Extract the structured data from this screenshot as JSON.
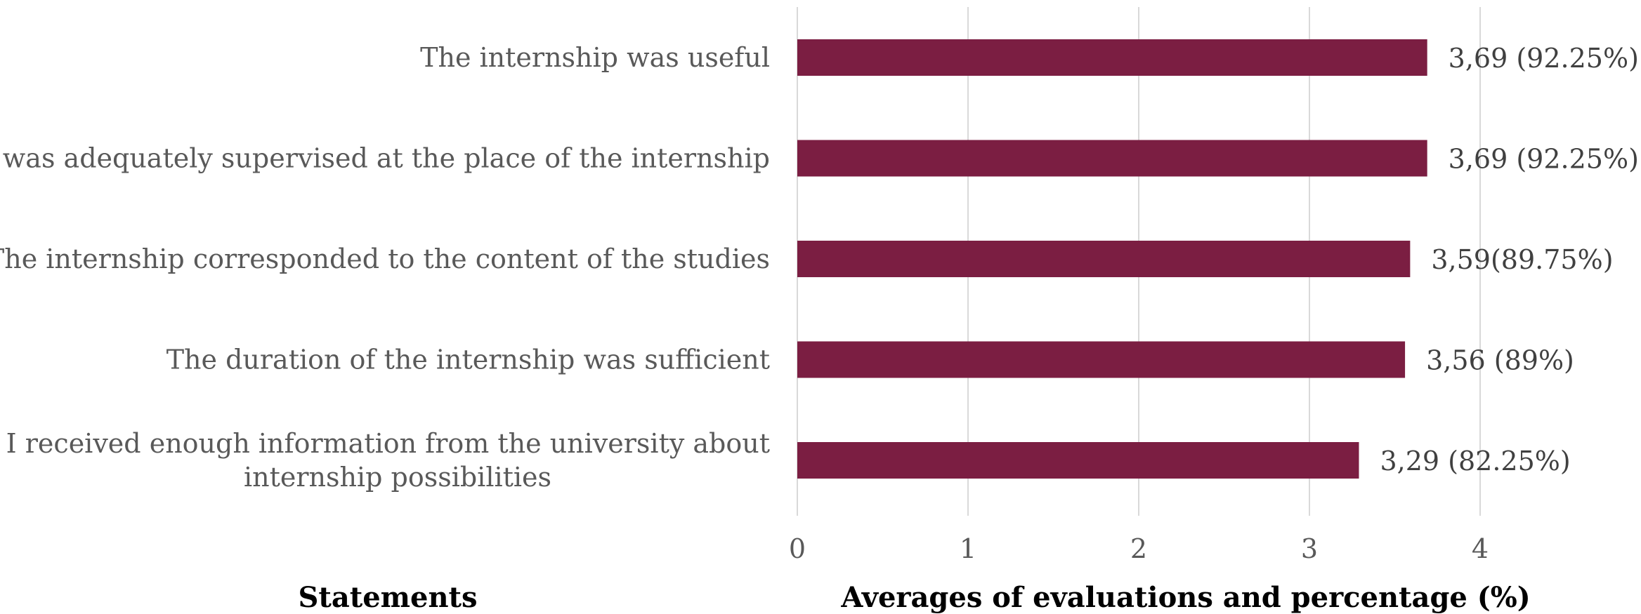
{
  "chart_data": {
    "type": "bar",
    "orientation": "horizontal",
    "categories": [
      "The internship was useful",
      "I was adequately supervised at the place of the internship",
      "The internship corresponded to the content of the studies",
      "The duration of the internship was sufficient",
      "I received enough information from the university about internship possibilities"
    ],
    "category_lines": [
      [
        "The internship was useful"
      ],
      [
        "I was adequately supervised at the place of the internship"
      ],
      [
        "The internship corresponded to the content of the studies"
      ],
      [
        "The duration of the internship was sufficient"
      ],
      [
        "I received enough information from the university about",
        "internship possibilities"
      ]
    ],
    "values": [
      3.69,
      3.69,
      3.59,
      3.56,
      3.29
    ],
    "data_labels": [
      "3,69 (92.25%)",
      "3,69 (92.25%)",
      "3,59(89.75%)",
      "3,56 (89%)",
      "3,29 (82.25%)"
    ],
    "xlim": [
      0,
      4
    ],
    "xticks": [
      0,
      1,
      2,
      3,
      4
    ],
    "xtick_labels": [
      "0",
      "1",
      "2",
      "3",
      "4"
    ],
    "xlabel": "Averages of evaluations and percentage (%)",
    "ylabel": "Statements",
    "grid": true,
    "legend": "none",
    "bar_color": "#7b1e42",
    "grid_color": "#d9d9d9"
  }
}
